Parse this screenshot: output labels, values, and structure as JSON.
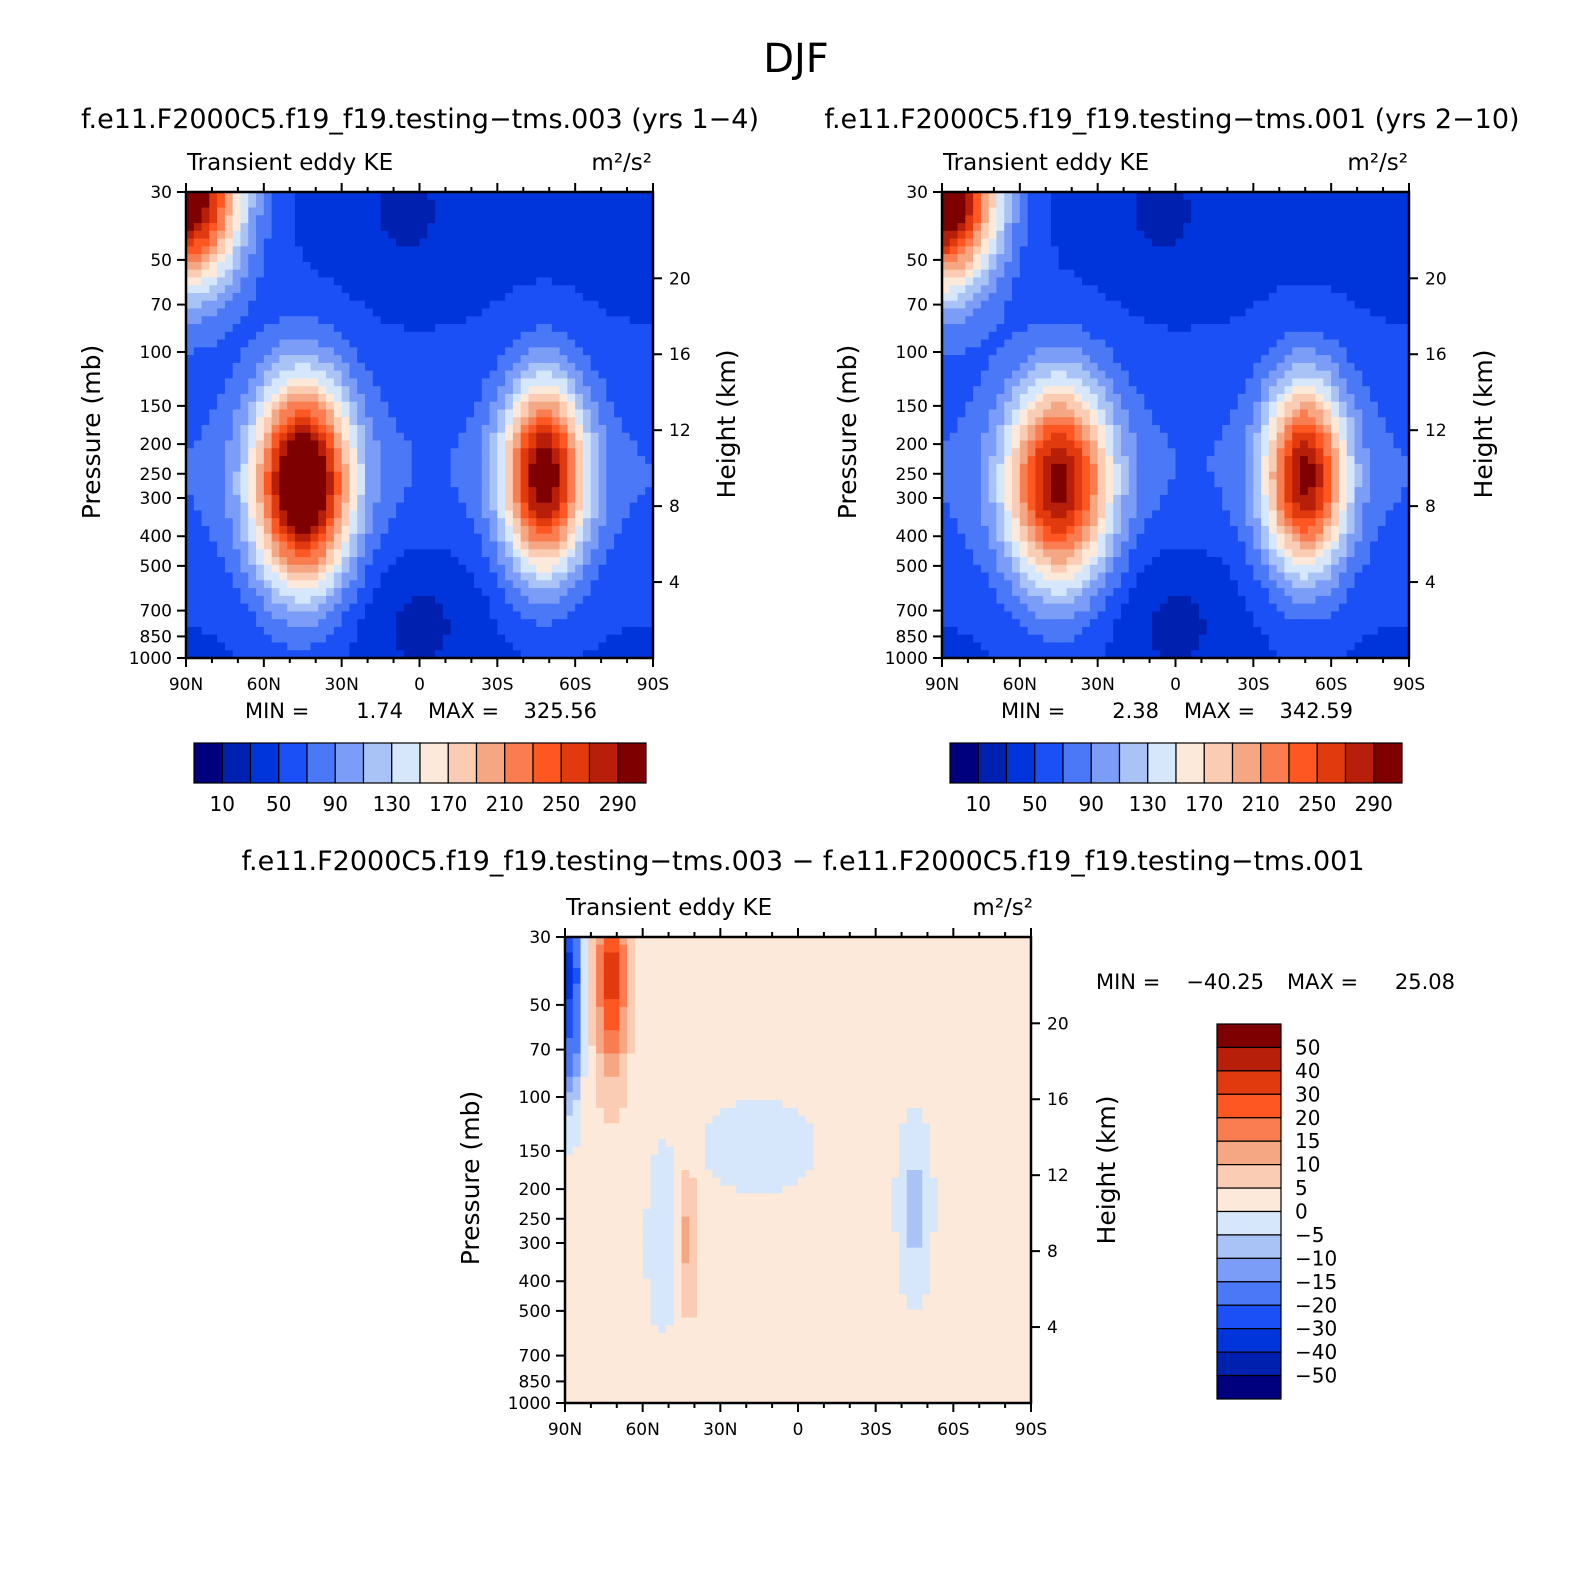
{
  "figure": {
    "title": "DJF",
    "colors": {
      "abs_levels": [
        "#00007f",
        "#0020b0",
        "#0035dc",
        "#1a50f5",
        "#4a78f7",
        "#7b9cf7",
        "#aac3f7",
        "#d6e7fb",
        "#fde9d9",
        "#f9ccb3",
        "#f5a683",
        "#f97d51",
        "#ff5722",
        "#e03a0e",
        "#b71f0a",
        "#7f0000"
      ],
      "diff_levels": [
        "#7f0000",
        "#b71f0a",
        "#e03a0e",
        "#ff5722",
        "#f97d51",
        "#f5a683",
        "#f9ccb3",
        "#fde9d9",
        "#d6e7fb",
        "#aac3f7",
        "#7b9cf7",
        "#4a78f7",
        "#1a50f5",
        "#0035dc",
        "#0020b0",
        "#00007f"
      ]
    }
  },
  "chart_data": [
    {
      "type": "heatmap",
      "panel": "top-left",
      "title": "f.e11.F2000C5.f19_f19.testing−tms.003 (yrs 1−4)",
      "left_label": "Transient eddy KE",
      "right_label": "m²/s²",
      "xlabel": "",
      "ylabel": "Pressure (mb)",
      "y2label": "Height (km)",
      "x_ticks": [
        "90N",
        "60N",
        "30N",
        "0",
        "30S",
        "60S",
        "90S"
      ],
      "y_ticks": [
        "30",
        "50",
        "70",
        "100",
        "150",
        "200",
        "250",
        "300",
        "400",
        "500",
        "700",
        "850",
        "1000"
      ],
      "y2_ticks": [
        "20",
        "16",
        "12",
        "8",
        "4"
      ],
      "xlim": [
        90,
        -90
      ],
      "ylim": [
        1000,
        30
      ],
      "y_scale": "log",
      "min_label": "MIN =",
      "min_value": "1.74",
      "max_label": "MAX =",
      "max_value": "325.56",
      "colorbar_labels": [
        "10",
        "50",
        "90",
        "130",
        "170",
        "210",
        "250",
        "290"
      ],
      "colorbar_levels": [
        10,
        30,
        50,
        70,
        90,
        110,
        130,
        150,
        170,
        190,
        210,
        230,
        250,
        270,
        290
      ],
      "features": [
        {
          "x": 45,
          "p": 270,
          "peak": 320,
          "sx": 13,
          "sy": 0.55
        },
        {
          "x": -48,
          "p": 255,
          "peak": 285,
          "sx": 11,
          "sy": 0.5
        },
        {
          "x": 90,
          "p": 30,
          "peak": 325,
          "sx": 15,
          "sy": 0.5
        }
      ]
    },
    {
      "type": "heatmap",
      "panel": "top-right",
      "title": "f.e11.F2000C5.f19_f19.testing−tms.001 (yrs 2−10)",
      "left_label": "Transient eddy KE",
      "right_label": "m²/s²",
      "xlabel": "",
      "ylabel": "Pressure (mb)",
      "y2label": "Height (km)",
      "x_ticks": [
        "90N",
        "60N",
        "30N",
        "0",
        "30S",
        "60S",
        "90S"
      ],
      "y_ticks": [
        "30",
        "50",
        "70",
        "100",
        "150",
        "200",
        "250",
        "300",
        "400",
        "500",
        "700",
        "850",
        "1000"
      ],
      "y2_ticks": [
        "20",
        "16",
        "12",
        "8",
        "4"
      ],
      "xlim": [
        90,
        -90
      ],
      "ylim": [
        1000,
        30
      ],
      "y_scale": "log",
      "min_label": "MIN =",
      "min_value": "2.38",
      "max_label": "MAX =",
      "max_value": "342.59",
      "colorbar_labels": [
        "10",
        "50",
        "90",
        "130",
        "170",
        "210",
        "250",
        "290"
      ],
      "colorbar_levels": [
        10,
        30,
        50,
        70,
        90,
        110,
        130,
        150,
        170,
        190,
        210,
        230,
        250,
        270,
        290
      ],
      "features": [
        {
          "x": 45,
          "p": 270,
          "peak": 270,
          "sx": 14,
          "sy": 0.55
        },
        {
          "x": -50,
          "p": 255,
          "peak": 270,
          "sx": 11,
          "sy": 0.5
        },
        {
          "x": 90,
          "p": 30,
          "peak": 342,
          "sx": 15,
          "sy": 0.5
        }
      ]
    },
    {
      "type": "heatmap",
      "panel": "bottom",
      "title": "f.e11.F2000C5.f19_f19.testing−tms.003 − f.e11.F2000C5.f19_f19.testing−tms.001",
      "left_label": "Transient eddy KE",
      "right_label": "m²/s²",
      "xlabel": "",
      "ylabel": "Pressure (mb)",
      "y2label": "Height (km)",
      "x_ticks": [
        "90N",
        "60N",
        "30N",
        "0",
        "30S",
        "60S",
        "90S"
      ],
      "y_ticks": [
        "30",
        "50",
        "70",
        "100",
        "150",
        "200",
        "250",
        "300",
        "400",
        "500",
        "700",
        "850",
        "1000"
      ],
      "y2_ticks": [
        "20",
        "16",
        "12",
        "8",
        "4"
      ],
      "xlim": [
        90,
        -90
      ],
      "ylim": [
        1000,
        30
      ],
      "y_scale": "log",
      "min_label": "MIN =",
      "min_value": "−40.25",
      "max_label": "MAX =",
      "max_value": "25.08",
      "colorbar_labels": [
        "50",
        "40",
        "30",
        "20",
        "15",
        "10",
        "5",
        "0",
        "−5",
        "−10",
        "−15",
        "−20",
        "−30",
        "−40",
        "−50"
      ],
      "colorbar_levels": [
        50,
        40,
        30,
        20,
        15,
        10,
        5,
        0,
        -5,
        -10,
        -15,
        -20,
        -30,
        -40,
        -50
      ],
      "features": [
        {
          "x": 72,
          "p": 40,
          "peak": 25,
          "sx": 4,
          "sy": 0.5
        },
        {
          "x": 43,
          "p": 290,
          "peak": 10,
          "sx": 3,
          "sy": 0.4
        },
        {
          "x": 88,
          "p": 40,
          "peak": -40,
          "sx": 3,
          "sy": 0.6
        },
        {
          "x": -45,
          "p": 230,
          "peak": -10,
          "sx": 5,
          "sy": 0.5
        },
        {
          "x": 52,
          "p": 300,
          "peak": -8,
          "sx": 5,
          "sy": 0.5
        },
        {
          "x": 15,
          "p": 145,
          "peak": -8,
          "sx": 16,
          "sy": 0.25
        }
      ]
    }
  ]
}
